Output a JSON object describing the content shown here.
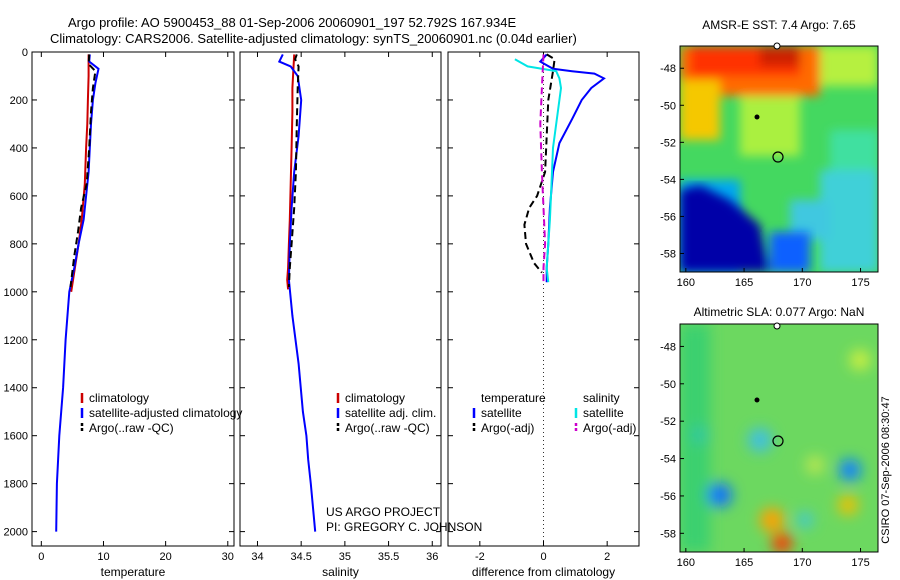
{
  "title_line1": "Argo profile: AO 5900453_88 01-Sep-2006 20060901_197 52.792S 167.934E",
  "title_line2": "Climatology: CARS2006. Satellite-adjusted climatology: synTS_20060901.nc (0.04d earlier)",
  "credit_line1": "US ARGO PROJECT",
  "credit_line2": "PI: GREGORY C. JOHNSON",
  "csiro_stamp": "CSIRO 07-Sep-2006 08:30:47",
  "colors": {
    "climatology": "#cc0000",
    "satellite": "#0000ff",
    "argo": "#000000",
    "sal_satellite": "#00e5e5",
    "sal_argo": "#cc00cc"
  },
  "chart_data": [
    {
      "type": "line",
      "xlabel": "temperature",
      "xlim": [
        -1.5,
        31
      ],
      "xticks": [
        0,
        10,
        20,
        30
      ],
      "ylim": [
        0,
        2060
      ],
      "yticks": [
        0,
        200,
        400,
        600,
        800,
        1000,
        1200,
        1400,
        1600,
        1800,
        2000
      ],
      "y_reversed": true,
      "legend": [
        "climatology",
        "satellite-adjusted climatology",
        "Argo(..raw -QC)"
      ],
      "series": [
        {
          "name": "climatology",
          "color": "#cc0000",
          "style": "solid",
          "x": [
            7.6,
            7.6,
            7.5,
            7.4,
            7.2,
            7.0,
            6.5,
            6.0,
            5.4,
            4.8
          ],
          "y": [
            10,
            100,
            200,
            300,
            400,
            550,
            700,
            800,
            900,
            1000
          ]
        },
        {
          "name": "satellite-adjusted climatology",
          "color": "#0000ff",
          "style": "solid",
          "x": [
            7.8,
            7.7,
            9.2,
            8.7,
            8.3,
            8.0,
            7.6,
            6.8,
            6.0,
            5.3,
            4.5,
            3.9,
            3.5,
            3.2,
            2.9,
            2.7,
            2.5,
            2.4
          ],
          "y": [
            10,
            40,
            70,
            130,
            200,
            300,
            500,
            700,
            800,
            900,
            1000,
            1200,
            1400,
            1500,
            1600,
            1700,
            1800,
            2000
          ]
        },
        {
          "name": "Argo(..raw -QC)",
          "color": "#000000",
          "style": "dashed",
          "x": [
            7.7,
            7.6,
            8.7,
            8.3,
            8.0,
            7.7,
            7.3,
            6.4,
            5.9,
            5.3,
            4.7
          ],
          "y": [
            10,
            50,
            80,
            150,
            250,
            400,
            550,
            650,
            750,
            850,
            980
          ]
        }
      ]
    },
    {
      "type": "line",
      "xlabel": "salinity",
      "xlim": [
        33.8,
        36.1
      ],
      "xticks": [
        34,
        34.5,
        35,
        35.5,
        36
      ],
      "ylim": [
        0,
        2060
      ],
      "y_reversed": true,
      "legend": [
        "climatology",
        "satellite adj. clim.",
        "Argo(..raw -QC)"
      ],
      "series": [
        {
          "name": "climatology",
          "color": "#cc0000",
          "style": "solid",
          "x": [
            34.42,
            34.41,
            34.4,
            34.4,
            34.39,
            34.38,
            34.37,
            34.36,
            34.35,
            34.34,
            34.35
          ],
          "y": [
            10,
            80,
            150,
            250,
            400,
            550,
            700,
            800,
            900,
            950,
            990
          ]
        },
        {
          "name": "satellite adj. clim.",
          "color": "#0000ff",
          "style": "solid",
          "x": [
            34.29,
            34.25,
            34.38,
            34.46,
            34.5,
            34.47,
            34.42,
            34.39,
            34.37,
            34.36,
            34.4,
            34.47,
            34.52,
            34.56,
            34.58,
            34.61,
            34.66
          ],
          "y": [
            10,
            40,
            60,
            100,
            200,
            350,
            500,
            650,
            800,
            950,
            1100,
            1300,
            1500,
            1600,
            1700,
            1800,
            2000
          ]
        },
        {
          "name": "Argo(..raw -QC)",
          "color": "#000000",
          "style": "dashed",
          "x": [
            34.45,
            34.43,
            34.47,
            34.46,
            34.45,
            34.44,
            34.42,
            34.39,
            34.37,
            34.36
          ],
          "y": [
            10,
            30,
            60,
            150,
            300,
            500,
            650,
            800,
            900,
            980
          ]
        }
      ]
    },
    {
      "type": "line",
      "xlabel": "difference from climatology",
      "xlim": [
        -3,
        3
      ],
      "xticks": [
        -2,
        0,
        2
      ],
      "ylim": [
        0,
        2060
      ],
      "y_reversed": true,
      "legend": [
        "temperature",
        "salinity",
        "satellite",
        "satellite",
        "Argo(-adj)",
        "Argo(-adj)"
      ],
      "series": [
        {
          "name": "temperature satellite",
          "color": "#0000ff",
          "style": "solid",
          "x": [
            0.1,
            -0.1,
            0.3,
            0.9,
            1.6,
            1.9,
            1.5,
            1.2,
            0.9,
            0.5,
            0.3,
            0.2,
            0.15,
            0.1,
            0.1
          ],
          "y": [
            10,
            40,
            70,
            80,
            90,
            110,
            150,
            200,
            280,
            380,
            500,
            650,
            800,
            900,
            960
          ]
        },
        {
          "name": "salinity satellite",
          "color": "#00e5e5",
          "style": "solid",
          "x": [
            -0.9,
            -0.5,
            0.4,
            0.5,
            0.55,
            0.45,
            0.3,
            0.25,
            0.2,
            0.15,
            0.1,
            0.15
          ],
          "y": [
            30,
            60,
            80,
            110,
            150,
            250,
            400,
            550,
            700,
            800,
            900,
            960
          ]
        },
        {
          "name": "temperature Argo(-adj)",
          "color": "#000000",
          "style": "dashed",
          "x": [
            0.1,
            0.35,
            0.3,
            0.15,
            0.05,
            -0.2,
            -0.45,
            -0.6,
            -0.55,
            -0.3,
            -0.05
          ],
          "y": [
            10,
            30,
            80,
            200,
            500,
            600,
            650,
            720,
            800,
            880,
            920
          ]
        },
        {
          "name": "salinity Argo(-adj)",
          "color": "#cc00cc",
          "style": "dashed",
          "x": [
            0.0,
            -0.05,
            -0.1,
            -0.05,
            0.0,
            0.05,
            0.0,
            0.0
          ],
          "y": [
            10,
            150,
            300,
            500,
            650,
            800,
            900,
            960
          ]
        }
      ]
    },
    {
      "type": "heatmap",
      "title": "AMSR-E SST: 7.4 Argo: 7.65",
      "xlim": [
        159.5,
        176.5
      ],
      "xticks": [
        160,
        165,
        170,
        175
      ],
      "ylim": [
        -59,
        -46.8
      ],
      "yticks": [
        -48,
        -50,
        -52,
        -54,
        -56,
        -58
      ],
      "argo_location": [
        167.934,
        -52.792
      ]
    },
    {
      "type": "heatmap",
      "title": "Altimetric SLA: 0.077 Argo: NaN",
      "xlim": [
        159.5,
        176.5
      ],
      "xticks": [
        160,
        165,
        170,
        175
      ],
      "ylim": [
        -59,
        -46.8
      ],
      "yticks": [
        -48,
        -50,
        -52,
        -54,
        -56,
        -58
      ],
      "argo_location": [
        167.934,
        -52.792
      ]
    }
  ]
}
